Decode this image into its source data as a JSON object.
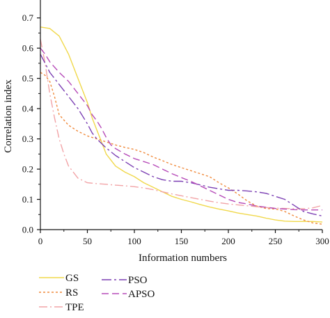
{
  "chart_data": {
    "type": "line",
    "title": "",
    "xlabel": "Information numbers",
    "ylabel": "Correlation index",
    "xlim": [
      0,
      300
    ],
    "ylim": [
      0,
      0.75
    ],
    "xticks": [
      0,
      50,
      100,
      150,
      200,
      250,
      300
    ],
    "yticks": [
      0.0,
      0.1,
      0.2,
      0.3,
      0.4,
      0.5,
      0.6,
      0.7
    ],
    "ytick_labels": [
      "0.0",
      "0.1",
      "0.2",
      "0.3",
      "0.4",
      "0.5",
      "0.6",
      "0.7"
    ],
    "xtick_labels": [
      "0",
      "50",
      "100",
      "150",
      "200",
      "250",
      "300"
    ],
    "grid": false,
    "legend_position": "bottom",
    "series": [
      {
        "name": "GS",
        "color": "#f0d84a",
        "dash": "solid",
        "x": [
          0,
          10,
          20,
          30,
          40,
          50,
          55,
          60,
          65,
          70,
          80,
          90,
          100,
          110,
          120,
          130,
          140,
          150,
          160,
          170,
          180,
          190,
          200,
          210,
          220,
          230,
          240,
          250,
          260,
          270,
          280,
          290,
          300
        ],
        "y": [
          0.67,
          0.665,
          0.64,
          0.58,
          0.5,
          0.42,
          0.37,
          0.33,
          0.29,
          0.25,
          0.21,
          0.19,
          0.175,
          0.155,
          0.14,
          0.125,
          0.11,
          0.1,
          0.092,
          0.083,
          0.075,
          0.068,
          0.062,
          0.055,
          0.05,
          0.045,
          0.038,
          0.032,
          0.028,
          0.027,
          0.027,
          0.027,
          0.025
        ]
      },
      {
        "name": "RS",
        "color": "#f08a3c",
        "dash": "3,3",
        "x": [
          0,
          5,
          10,
          15,
          20,
          30,
          40,
          50,
          60,
          70,
          80,
          90,
          100,
          110,
          120,
          130,
          140,
          150,
          160,
          170,
          180,
          190,
          200,
          210,
          220,
          230,
          240,
          250,
          260,
          270,
          280,
          290,
          300
        ],
        "y": [
          0.52,
          0.51,
          0.49,
          0.44,
          0.38,
          0.345,
          0.325,
          0.31,
          0.3,
          0.29,
          0.28,
          0.272,
          0.265,
          0.255,
          0.24,
          0.228,
          0.215,
          0.205,
          0.195,
          0.185,
          0.175,
          0.155,
          0.138,
          0.118,
          0.095,
          0.078,
          0.07,
          0.068,
          0.06,
          0.045,
          0.032,
          0.022,
          0.018
        ]
      },
      {
        "name": "TPE",
        "color": "#f2a3a6",
        "dash": "12,4,2,4",
        "x": [
          0,
          5,
          10,
          15,
          20,
          25,
          30,
          35,
          40,
          50,
          60,
          70,
          80,
          90,
          100,
          110,
          120,
          130,
          140,
          150,
          160,
          170,
          180,
          190,
          200,
          210,
          220,
          230,
          240,
          250,
          260,
          270,
          280,
          290,
          300
        ],
        "y": [
          0.63,
          0.55,
          0.45,
          0.37,
          0.3,
          0.25,
          0.21,
          0.19,
          0.17,
          0.155,
          0.152,
          0.15,
          0.147,
          0.145,
          0.142,
          0.138,
          0.132,
          0.125,
          0.118,
          0.112,
          0.106,
          0.1,
          0.094,
          0.089,
          0.085,
          0.082,
          0.079,
          0.076,
          0.073,
          0.071,
          0.07,
          0.069,
          0.069,
          0.072,
          0.08
        ]
      },
      {
        "name": "PSO",
        "color": "#7b3fb3",
        "dash": "14,4,3,4",
        "x": [
          0,
          5,
          10,
          20,
          30,
          40,
          50,
          55,
          60,
          70,
          80,
          90,
          100,
          110,
          120,
          130,
          140,
          150,
          160,
          170,
          180,
          190,
          200,
          210,
          220,
          230,
          240,
          250,
          260,
          270,
          280,
          290,
          300
        ],
        "y": [
          0.58,
          0.55,
          0.52,
          0.48,
          0.44,
          0.4,
          0.35,
          0.32,
          0.3,
          0.27,
          0.245,
          0.225,
          0.205,
          0.19,
          0.175,
          0.165,
          0.16,
          0.16,
          0.155,
          0.148,
          0.14,
          0.135,
          0.13,
          0.13,
          0.128,
          0.125,
          0.12,
          0.11,
          0.1,
          0.08,
          0.06,
          0.052,
          0.045
        ]
      },
      {
        "name": "APSO",
        "color": "#b64ab8",
        "dash": "10,5",
        "x": [
          0,
          5,
          10,
          20,
          30,
          40,
          50,
          55,
          60,
          65,
          70,
          75,
          80,
          90,
          100,
          110,
          120,
          130,
          140,
          150,
          160,
          170,
          180,
          190,
          200,
          210,
          220,
          230,
          240,
          250,
          260,
          270,
          280,
          290,
          300
        ],
        "y": [
          0.6,
          0.58,
          0.555,
          0.52,
          0.49,
          0.45,
          0.41,
          0.38,
          0.36,
          0.335,
          0.305,
          0.28,
          0.268,
          0.25,
          0.235,
          0.225,
          0.215,
          0.2,
          0.185,
          0.172,
          0.16,
          0.145,
          0.13,
          0.115,
          0.1,
          0.09,
          0.085,
          0.078,
          0.074,
          0.07,
          0.068,
          0.066,
          0.065,
          0.065,
          0.065
        ]
      }
    ]
  }
}
